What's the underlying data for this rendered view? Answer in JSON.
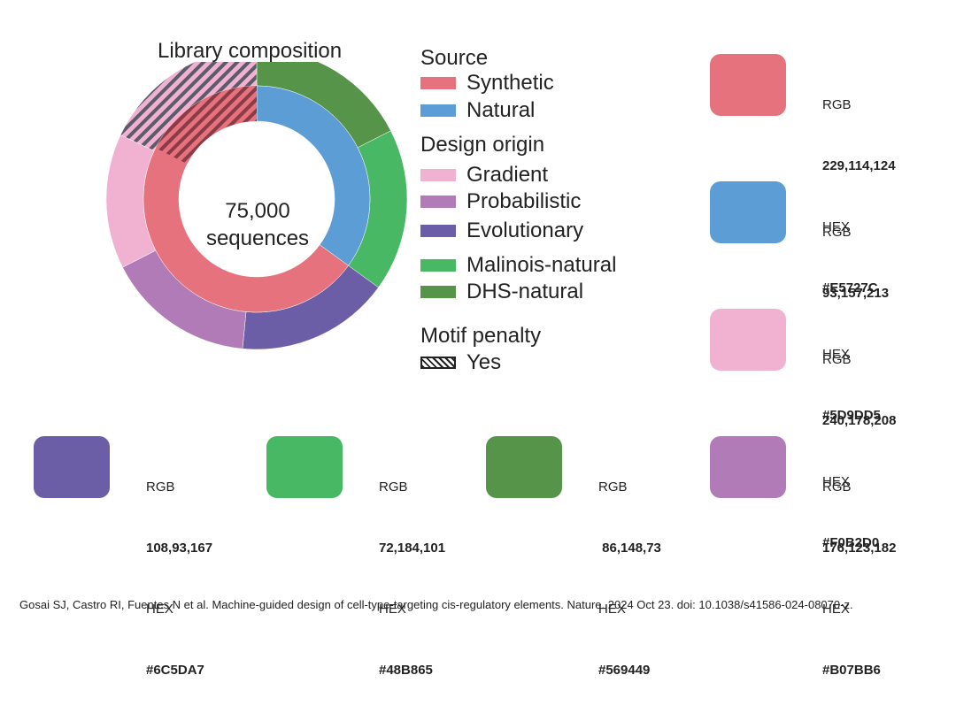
{
  "chart_data": {
    "type": "pie",
    "title": "Library composition",
    "center_text": [
      "75,000",
      "sequences"
    ],
    "rings": [
      {
        "name": "Source",
        "slices": [
          {
            "label": "Natural",
            "value": 35,
            "color": "#5D9DD5",
            "hatched": false
          },
          {
            "label": "Synthetic",
            "value": 65,
            "color": "#E5727C",
            "hatched": false,
            "hatched_fraction": 0.27
          }
        ]
      },
      {
        "name": "Design origin",
        "slices": [
          {
            "label": "DHS-natural",
            "value": 17.5,
            "color": "#569449",
            "hatched": false
          },
          {
            "label": "Malinois-natural",
            "value": 17.5,
            "color": "#48B865",
            "hatched": false
          },
          {
            "label": "Evolutionary",
            "value": 16.5,
            "color": "#6C5DA7",
            "hatched": false
          },
          {
            "label": "Probabilistic",
            "value": 16.0,
            "color": "#B07BB6",
            "hatched": false
          },
          {
            "label": "Gradient",
            "value": 14.5,
            "color": "#F0B2D0",
            "hatched": false
          },
          {
            "label": "Gradient",
            "value": 18.0,
            "color": "#F0B2D0",
            "hatched": true
          }
        ]
      }
    ],
    "legend": {
      "groups": [
        {
          "heading": "Source",
          "items": [
            {
              "label": "Synthetic",
              "color": "#E5727C"
            },
            {
              "label": "Natural",
              "color": "#5D9DD5"
            }
          ]
        },
        {
          "heading": "Design origin",
          "items": [
            {
              "label": "Gradient",
              "color": "#F0B2D0"
            },
            {
              "label": "Probabilistic",
              "color": "#B07BB6"
            },
            {
              "label": "Evolutionary",
              "color": "#6C5DA7"
            },
            {
              "label": "Malinois-natural",
              "color": "#48B865"
            },
            {
              "label": "DHS-natural",
              "color": "#569449"
            }
          ]
        },
        {
          "heading": "Motif penalty",
          "items": [
            {
              "label": "Yes",
              "color": "hatched"
            }
          ]
        }
      ]
    }
  },
  "swatches": [
    {
      "rgb_label": "RGB",
      "rgb": "229,114,124",
      "hex_label": "HEX",
      "hex": "#E5727C",
      "color": "#E5727C"
    },
    {
      "rgb_label": "RGB",
      "rgb": "93,157,213",
      "hex_label": "HEX",
      "hex": "#5D9DD5",
      "color": "#5D9DD5"
    },
    {
      "rgb_label": "RGB",
      "rgb": "240,178,208",
      "hex_label": "HEX",
      "hex": "#F0B2D0",
      "color": "#F0B2D0"
    },
    {
      "rgb_label": "RGB",
      "rgb": "108,93,167",
      "hex_label": "HEX",
      "hex": "#6C5DA7",
      "color": "#6C5DA7"
    },
    {
      "rgb_label": "RGB",
      "rgb": "72,184,101",
      "hex_label": "HEX",
      "hex": "#48B865",
      "color": "#48B865"
    },
    {
      "rgb_label": "RGB",
      "rgb": " 86,148,73",
      "hex_label": "HEX",
      "hex": "#569449",
      "color": "#569449"
    },
    {
      "rgb_label": "RGB",
      "rgb": "176,123,182",
      "hex_label": "HEX",
      "hex": "#B07BB6",
      "color": "#B07BB6"
    }
  ],
  "citation": "Gosai SJ, Castro RI, Fuentes N et al. Machine-guided design of cell-type-targeting cis-regulatory elements. Nature. 2024 Oct 23. doi: 10.1038/s41586-024-08070-z."
}
